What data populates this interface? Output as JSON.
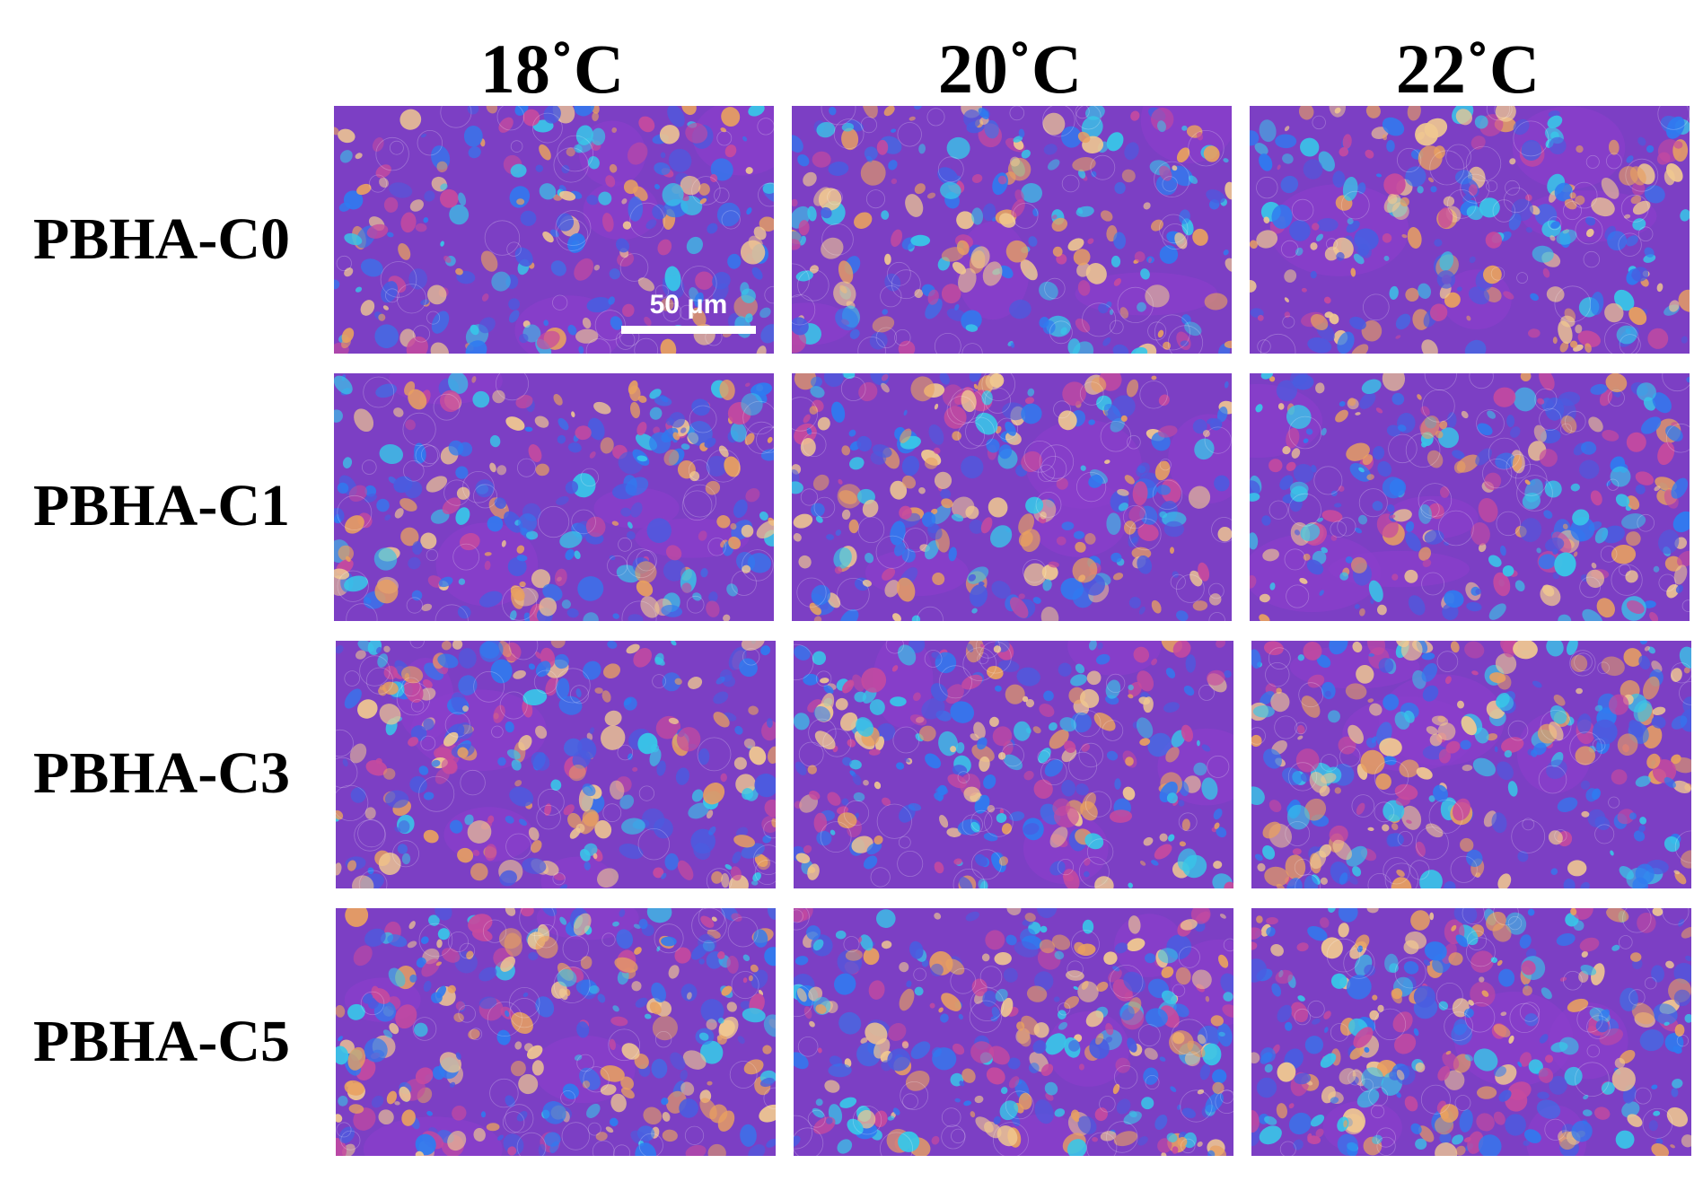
{
  "columns": [
    {
      "label": "18˚C"
    },
    {
      "label": "20˚C"
    },
    {
      "label": "22˚C"
    }
  ],
  "rows": [
    {
      "label": "PBHA-C0"
    },
    {
      "label": "PBHA-C1"
    },
    {
      "label": "PBHA-C3"
    },
    {
      "label": "PBHA-C5"
    }
  ],
  "scale_bar": {
    "label": "50 μm"
  },
  "colors": {
    "background_purple": "#7c3fc4",
    "crystal_blue": "#2f7bf0",
    "crystal_cyan": "#38c6e8",
    "crystal_orange": "#e8a060",
    "crystal_magenta": "#c64a9e"
  }
}
